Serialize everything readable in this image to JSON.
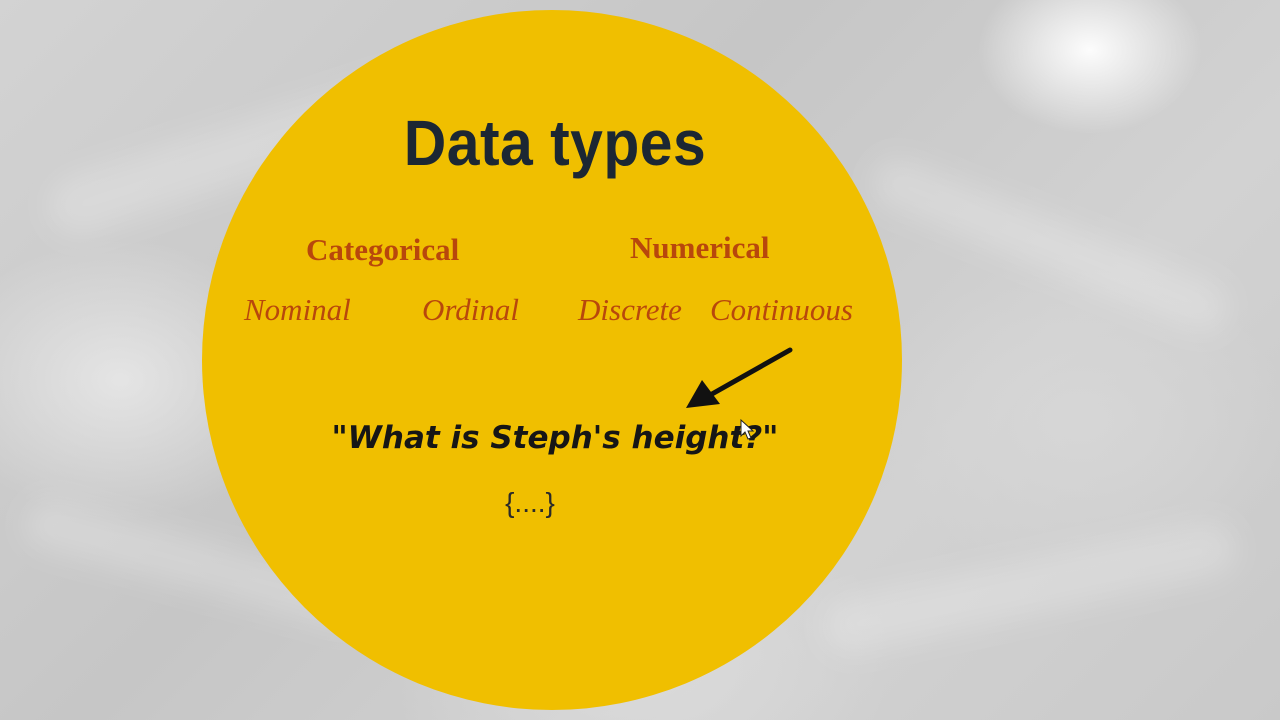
{
  "slide": {
    "title": "Data types",
    "categorical": {
      "label": "Categorical",
      "types": [
        "Nominal",
        "Ordinal"
      ]
    },
    "numerical": {
      "label": "Numerical",
      "types": [
        "Discrete",
        "Continuous"
      ]
    },
    "question": "\"What is Steph's height?\"",
    "answer_placeholder": "{....}",
    "pointer_arrow_icon": "arrow-pointing-down-left",
    "colors": {
      "circle": "#f0bf00",
      "title": "#1c2733",
      "accent": "#b8470c",
      "question": "#161616"
    }
  }
}
